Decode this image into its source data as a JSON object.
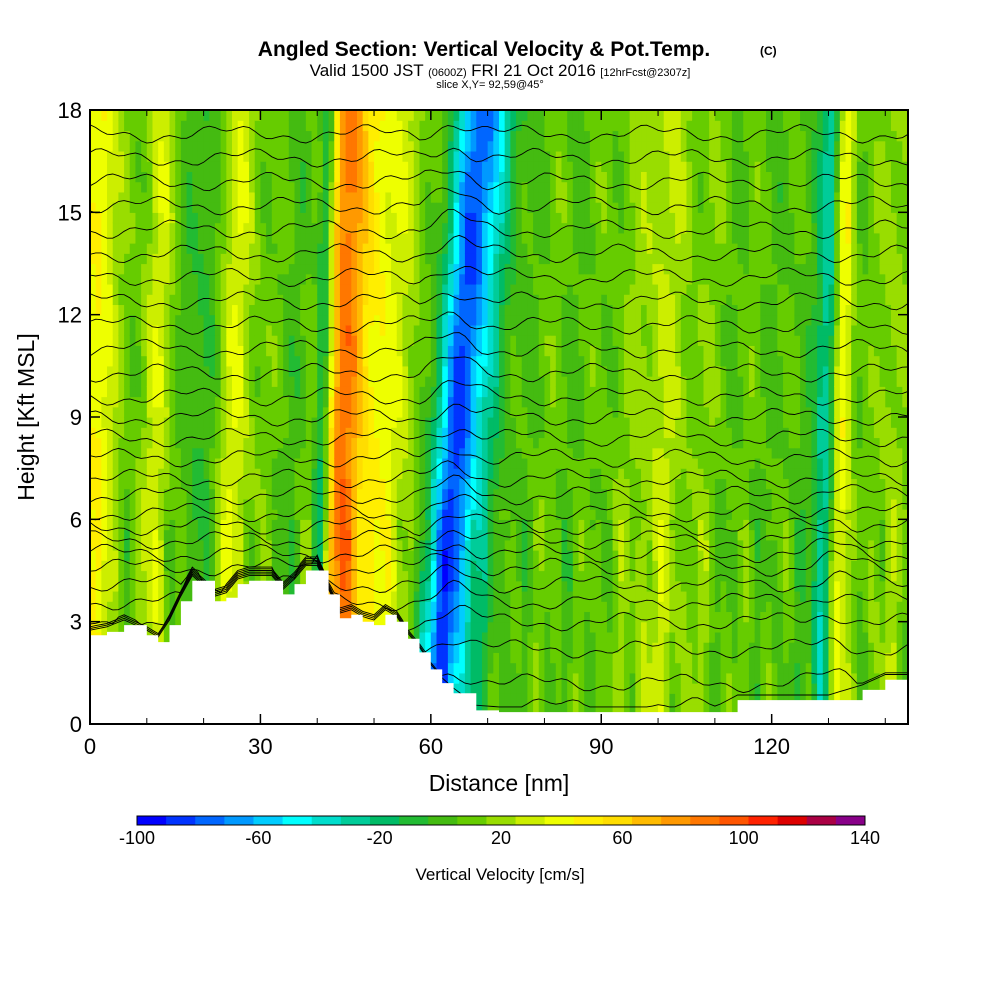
{
  "chart_data": {
    "type": "heatmap",
    "title": "Angled Section: Vertical Velocity & Pot.Temp.",
    "title_unit": "(C)",
    "subtitle": {
      "valid_prefix": "Valid 1500 JST",
      "utc": "(0600Z)",
      "date": "FRI 21 Oct 2016",
      "forecast": "[12hrFcst@2307z]"
    },
    "slice_label": "slice X,Y= 92,59@45°",
    "xlabel": "Distance [nm]",
    "ylabel": "Height [Kft MSL]",
    "xlim": [
      0,
      144
    ],
    "ylim": [
      0,
      18
    ],
    "xticks": [
      "0",
      "30",
      "60",
      "90",
      "120"
    ],
    "yticks": [
      "0",
      "3",
      "6",
      "9",
      "12",
      "15",
      "18"
    ],
    "colorbar": {
      "label": "Vertical Velocity [cm/s]",
      "range": [
        -100,
        140
      ],
      "step": 10,
      "tick_labels": [
        "-100",
        "-60",
        "-20",
        "20",
        "60",
        "100",
        "140"
      ],
      "colors": [
        "#0000ff",
        "#0033ff",
        "#0066ff",
        "#0099ff",
        "#00ccff",
        "#00ffff",
        "#00ddcc",
        "#00cc99",
        "#00bb66",
        "#22bb33",
        "#44bb11",
        "#66cc00",
        "#99dd00",
        "#ccee00",
        "#eeff00",
        "#ffee00",
        "#ffdd00",
        "#ffbb00",
        "#ff9900",
        "#ff7700",
        "#ff5500",
        "#ff2200",
        "#dd0000",
        "#aa0044",
        "#880088"
      ]
    },
    "vertical_velocity_features": [
      {
        "x": 1,
        "w": 3,
        "value": 45
      },
      {
        "x": 7,
        "w": 4,
        "value": 5
      },
      {
        "x": 12,
        "w": 3,
        "value": 25
      },
      {
        "x": 20,
        "w": 3.5,
        "value": -12
      },
      {
        "x": 25,
        "w": 3.5,
        "value": 30
      },
      {
        "x": 30,
        "w": 3,
        "value": 5
      },
      {
        "x": 41,
        "w": 1.5,
        "value": -55
      },
      {
        "x": 44,
        "w": 3.5,
        "value": 85
      },
      {
        "x": 50,
        "w": 4,
        "value": 42
      },
      {
        "x": 56,
        "w": 3,
        "value": 18
      },
      {
        "x": 65,
        "w": 4,
        "value": -85
      },
      {
        "x": 70,
        "w": 5,
        "value": -12
      },
      {
        "x": 80,
        "w": 6,
        "value": 5
      },
      {
        "x": 93,
        "w": 4,
        "value": 8
      },
      {
        "x": 100,
        "w": 4,
        "value": 22
      },
      {
        "x": 107,
        "w": 5,
        "value": 10
      },
      {
        "x": 117,
        "w": 5,
        "value": 3
      },
      {
        "x": 130,
        "w": 2,
        "value": -50
      },
      {
        "x": 132,
        "w": 2,
        "value": 55
      },
      {
        "x": 141,
        "w": 3,
        "value": 18
      }
    ],
    "terrain": {
      "x": [
        0,
        3,
        6,
        10,
        12,
        14,
        16,
        18,
        22,
        24,
        26,
        28,
        32,
        34,
        36,
        38,
        40,
        42,
        44,
        46,
        48,
        50,
        52,
        54,
        56,
        58,
        60,
        62,
        64,
        68,
        72,
        80,
        90,
        100,
        110,
        114,
        120,
        126,
        130,
        136,
        140,
        144
      ],
      "height_kft": [
        2.6,
        2.7,
        2.9,
        2.6,
        2.4,
        2.9,
        3.6,
        4.2,
        3.6,
        3.7,
        4.1,
        4.2,
        4.2,
        3.8,
        4.1,
        4.5,
        4.5,
        3.8,
        3.1,
        3.2,
        3.0,
        2.9,
        3.2,
        3.0,
        2.5,
        2.1,
        1.6,
        1.2,
        0.9,
        0.4,
        0.35,
        0.35,
        0.35,
        0.35,
        0.35,
        0.7,
        0.7,
        0.7,
        0.7,
        1.0,
        1.3,
        1.3
      ]
    },
    "theta_contours": [
      {
        "base": 0.5,
        "label": "",
        "label_x": 0
      },
      {
        "base": 1.2,
        "label": "",
        "label_x": 0
      },
      {
        "base": 2.2,
        "label": "",
        "label_x": 0
      },
      {
        "base": 3.0,
        "label": "",
        "label_x": 0
      },
      {
        "base": 3.6,
        "label": "",
        "label_x": 0
      },
      {
        "base": 4.1,
        "label": "",
        "label_x": 0
      },
      {
        "base": 4.6,
        "label": "",
        "label_x": 0
      },
      {
        "base": 5.0,
        "label": "",
        "label_x": 0
      },
      {
        "base": 5.4,
        "label": "",
        "label_x": 0
      },
      {
        "base": 5.8,
        "label": "",
        "label_x": 0
      },
      {
        "base": 6.2,
        "label": "",
        "label_x": 0
      },
      {
        "base": 6.7,
        "label": "",
        "label_x": 0
      },
      {
        "base": 7.2,
        "label": "",
        "label_x": 0
      },
      {
        "base": 7.8,
        "label": "",
        "label_x": 0
      },
      {
        "base": 8.4,
        "label": "",
        "label_x": 0
      },
      {
        "base": 9.0,
        "label": "",
        "label_x": 0
      },
      {
        "base": 9.6,
        "label": "",
        "label_x": 0
      },
      {
        "base": 10.3,
        "label": "",
        "label_x": 0
      },
      {
        "base": 11.0,
        "label": "",
        "label_x": 0
      },
      {
        "base": 11.7,
        "label": "",
        "label_x": 0
      },
      {
        "base": 12.4,
        "label": "",
        "label_x": 0
      },
      {
        "base": 13.1,
        "label": "",
        "label_x": 0
      },
      {
        "base": 13.8,
        "label": "",
        "label_x": 0
      },
      {
        "base": 14.5,
        "label": "",
        "label_x": 0
      },
      {
        "base": 15.2,
        "label": "",
        "label_x": 0
      },
      {
        "base": 15.9,
        "label": "",
        "label_x": 0
      },
      {
        "base": 16.6,
        "label": "",
        "label_x": 0
      },
      {
        "base": 17.3,
        "label": "",
        "label_x": 0
      }
    ]
  }
}
